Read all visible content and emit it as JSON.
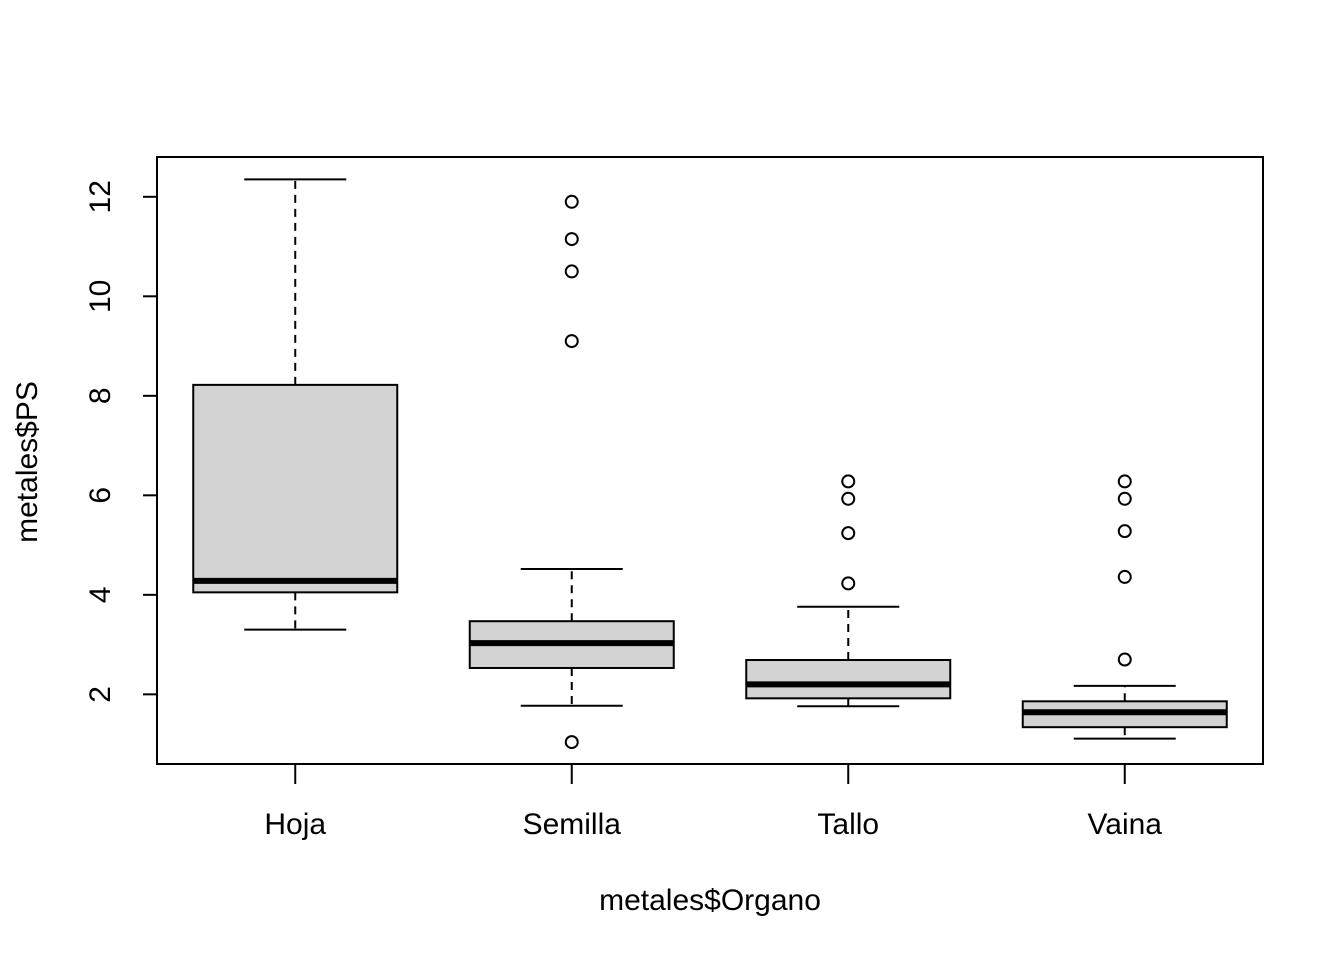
{
  "chart_data": {
    "type": "box",
    "title": "",
    "xlabel": "metales$Organo",
    "ylabel": "metales$PS",
    "ylim": [
      0.6,
      12.8
    ],
    "y_ticks": [
      2,
      4,
      6,
      8,
      10,
      12
    ],
    "y_tick_labels": [
      "2",
      "4",
      "6",
      "8",
      "10",
      "12"
    ],
    "grid": false,
    "legend": "none",
    "categories": [
      "Hoja",
      "Semilla",
      "Tallo",
      "Vaina"
    ],
    "boxes": [
      {
        "category": "Hoja",
        "whisker_low": 3.3,
        "q1": 4.05,
        "median": 4.28,
        "q3": 8.22,
        "whisker_high": 12.35,
        "outliers": []
      },
      {
        "category": "Semilla",
        "whisker_low": 1.77,
        "q1": 2.53,
        "median": 3.03,
        "q3": 3.47,
        "whisker_high": 4.52,
        "outliers": [
          1.04,
          9.1,
          10.5,
          11.15,
          11.9
        ]
      },
      {
        "category": "Tallo",
        "whisker_low": 1.76,
        "q1": 1.92,
        "median": 2.2,
        "q3": 2.69,
        "whisker_high": 3.76,
        "outliers": [
          4.23,
          5.24,
          5.93,
          6.28
        ]
      },
      {
        "category": "Vaina",
        "whisker_low": 1.11,
        "q1": 1.34,
        "median": 1.64,
        "q3": 1.86,
        "whisker_high": 2.17,
        "outliers": [
          2.7,
          4.36,
          5.28,
          5.93,
          6.28
        ]
      }
    ],
    "colors": {
      "box_fill": "#d3d3d3",
      "stroke": "#000000",
      "background": "#ffffff"
    }
  }
}
